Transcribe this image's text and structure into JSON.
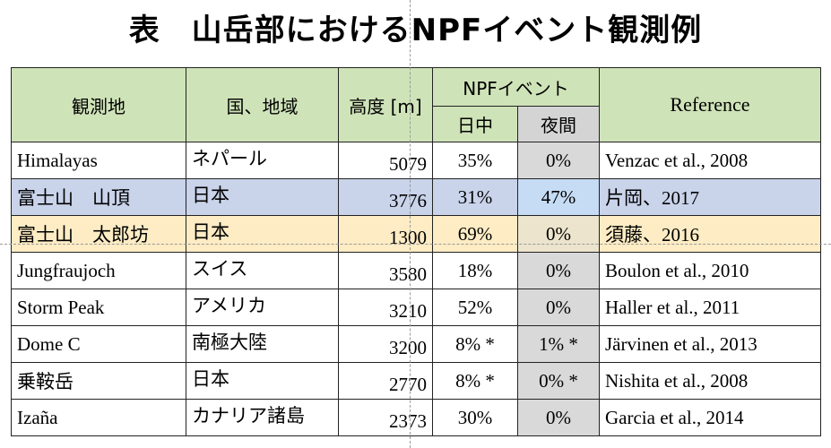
{
  "title": "表　山岳部におけるNPFイベント観測例",
  "table": {
    "header": {
      "site": "観測地",
      "region": "国、地域",
      "altitude": "高度 [m]",
      "npf": "NPFイベント",
      "day": "日中",
      "night": "夜間",
      "reference": "Reference"
    },
    "rows": [
      [
        "Himalayas",
        "ネパール",
        "5079",
        "35%",
        "0%",
        "Venzac et al., 2008"
      ],
      [
        "富士山　山頂",
        "日本",
        "3776",
        "31%",
        "47%",
        "片岡、2017"
      ],
      [
        "富士山　太郎坊",
        "日本",
        "1300",
        "69%",
        "0%",
        "須藤、2016"
      ],
      [
        "Jungfraujoch",
        "スイス",
        "3580",
        "18%",
        "0%",
        "Boulon et al., 2010"
      ],
      [
        "Storm Peak",
        "アメリカ",
        "3210",
        "52%",
        "0%",
        "Haller et al., 2011"
      ],
      [
        "Dome C",
        "南極大陸",
        "3200",
        "8% *",
        "1% *",
        "Järvinen et al., 2013"
      ],
      [
        "乗鞍岳",
        "日本",
        "2770",
        "8% *",
        "0% *",
        "Nishita et al., 2008"
      ],
      [
        "Izaña",
        "カナリア諸島",
        "2373",
        "30%",
        "0%",
        "Garcia et al., 2014"
      ]
    ]
  }
}
